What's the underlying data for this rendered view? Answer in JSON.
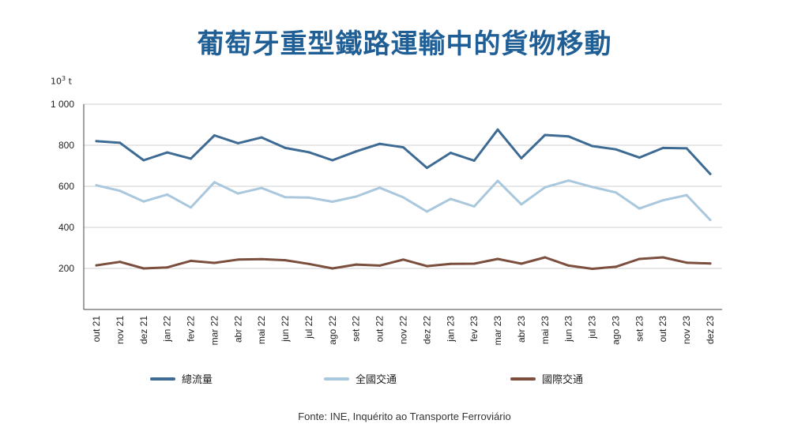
{
  "title": "葡萄牙重型鐵路運輸中的貨物移動",
  "unit": {
    "base": "10",
    "exp": "3",
    "suffix": " t"
  },
  "source": "Fonte: INE, Inquérito ao Transporte Ferroviário",
  "chart_data": {
    "type": "line",
    "title": "葡萄牙重型鐵路運輸中的貨物移動",
    "ylabel": "10³ t",
    "ylim": [
      0,
      1000
    ],
    "yticks": [
      200,
      400,
      600,
      800,
      1000
    ],
    "ytick_labels": [
      "200",
      "400",
      "600",
      "800",
      "1 000"
    ],
    "grid": true,
    "legend_position": "bottom",
    "categories": [
      "out 21",
      "nov 21",
      "dez 21",
      "jan 22",
      "fev 22",
      "mar 22",
      "abr 22",
      "mai 22",
      "jun 22",
      "jul 22",
      "ago 22",
      "set 22",
      "out 22",
      "nov 22",
      "dez 22",
      "jan 23",
      "fev 23",
      "mar 23",
      "abr 23",
      "mai 23",
      "jun 23",
      "jul 23",
      "ago 23",
      "set 23",
      "out 23",
      "nov 23",
      "dez 23"
    ],
    "series": [
      {
        "name": "總流量",
        "color": "#3e6b94",
        "values": [
          820,
          812,
          727,
          765,
          735,
          848,
          810,
          838,
          787,
          766,
          727,
          770,
          807,
          790,
          690,
          763,
          725,
          876,
          737,
          850,
          843,
          796,
          780,
          740,
          787,
          785,
          660
        ]
      },
      {
        "name": "全國交通",
        "color": "#a9c7dd",
        "values": [
          605,
          578,
          526,
          560,
          497,
          620,
          565,
          592,
          547,
          545,
          525,
          550,
          593,
          546,
          477,
          539,
          502,
          627,
          512,
          595,
          628,
          597,
          570,
          492,
          532,
          557,
          436
        ]
      },
      {
        "name": "國際交通",
        "color": "#7b4e3d",
        "values": [
          215,
          232,
          200,
          205,
          237,
          227,
          243,
          245,
          240,
          222,
          200,
          219,
          214,
          243,
          211,
          222,
          223,
          246,
          223,
          254,
          214,
          198,
          208,
          246,
          254,
          228,
          224
        ]
      }
    ]
  }
}
